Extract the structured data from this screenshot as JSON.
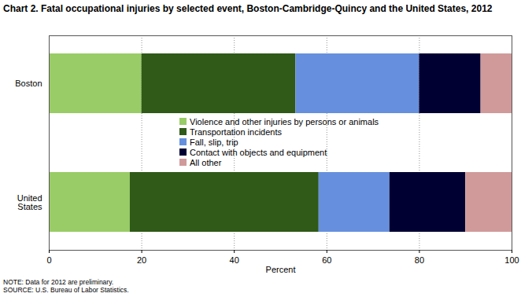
{
  "chart_data": {
    "type": "bar",
    "orientation": "horizontal",
    "stacked": true,
    "title": "Chart 2. Fatal occupational injuries by selected event, Boston-Cambridge-Quincy and the United States, 2012",
    "categories": [
      "Boston",
      "United States"
    ],
    "series": [
      {
        "name": "Violence and other injuries by persons or animals",
        "color": "#99cc66",
        "values": [
          20,
          17.5
        ]
      },
      {
        "name": "Transportation incidents",
        "color": "#2f5a17",
        "values": [
          33.3,
          40.8
        ]
      },
      {
        "name": "Fall, slip, trip",
        "color": "#6690dd",
        "values": [
          26.7,
          15.3
        ]
      },
      {
        "name": "Contact with objects and equipment",
        "color": "#000033",
        "values": [
          13.3,
          16.4
        ]
      },
      {
        "name": "All other",
        "color": "#d09a9a",
        "values": [
          6.7,
          10
        ]
      }
    ],
    "xlabel": "Percent",
    "xlim": [
      0,
      100
    ],
    "xticks": [
      0,
      20,
      40,
      60,
      80,
      100
    ],
    "grid": true,
    "legend": "center",
    "notes": [
      "NOTE: Data for 2012 are preliminary.",
      "SOURCE: U.S. Bureau of Labor Statistics."
    ]
  }
}
